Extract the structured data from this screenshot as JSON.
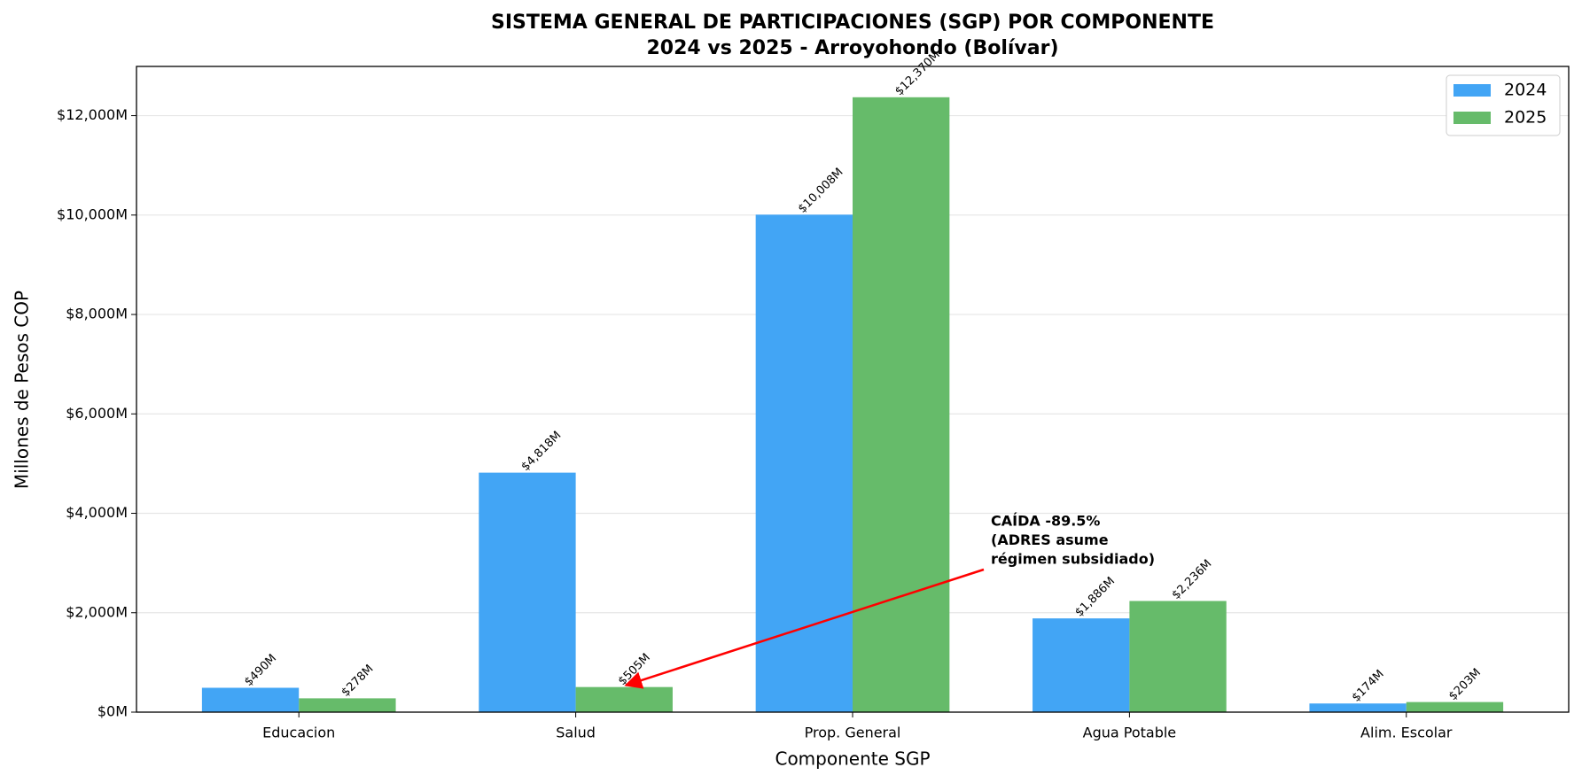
{
  "chart_data": {
    "type": "bar",
    "title": "SISTEMA GENERAL DE PARTICIPACIONES (SGP) POR COMPONENTE",
    "subtitle": "2024 vs 2025 - Arroyohondo (Bolívar)",
    "x_label": "Componente SGP",
    "y_label": "Millones de Pesos COP",
    "categories": [
      "Educacion",
      "Salud",
      "Prop. General",
      "Agua Potable",
      "Alim. Escolar"
    ],
    "series": [
      {
        "name": "2024",
        "color": "#42a5f5",
        "values": [
          490,
          4818,
          10008,
          1886,
          174
        ],
        "value_labels": [
          "$490M",
          "$4,818M",
          "$10,008M",
          "$1,886M",
          "$174M"
        ]
      },
      {
        "name": "2025",
        "color": "#66bb6a",
        "values": [
          278,
          505,
          12370,
          2236,
          203
        ],
        "value_labels": [
          "$278M",
          "$505M",
          "$12,370M",
          "$2,236M",
          "$203M"
        ]
      }
    ],
    "ylim": [
      0,
      12990
    ],
    "yticks": [
      {
        "value": 0,
        "label": "$0M"
      },
      {
        "value": 2000,
        "label": "$2,000M"
      },
      {
        "value": 4000,
        "label": "$4,000M"
      },
      {
        "value": 6000,
        "label": "$6,000M"
      },
      {
        "value": 8000,
        "label": "$8,000M"
      },
      {
        "value": 10000,
        "label": "$10,000M"
      },
      {
        "value": 12000,
        "label": "$12,000M"
      }
    ],
    "grid": true,
    "legend": "upper right",
    "annotation": {
      "lines": [
        "CAÍDA -89.5%",
        "(ADRES asume",
        "régimen subsidiado)"
      ],
      "color": "#ff0000"
    }
  }
}
